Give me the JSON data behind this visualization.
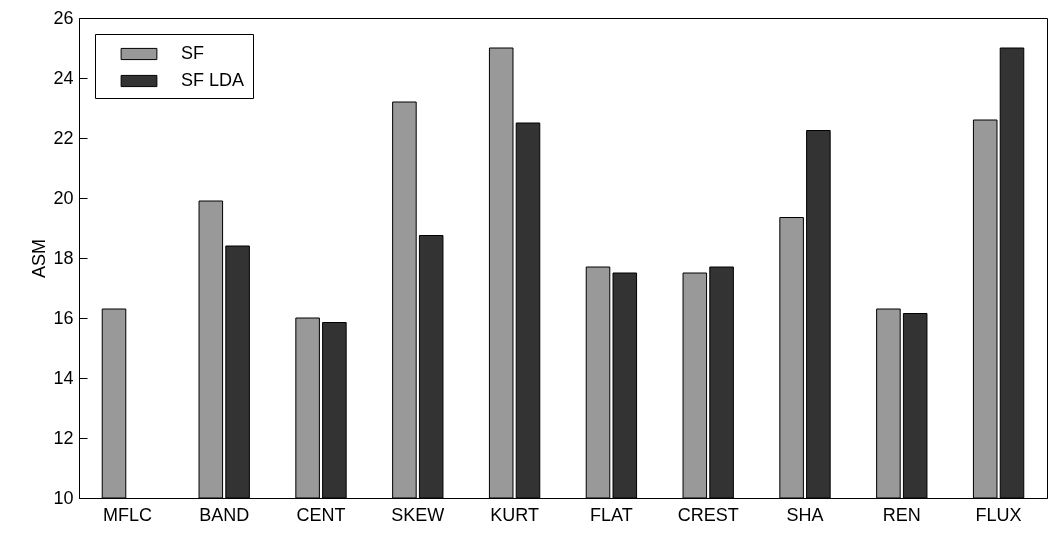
{
  "chart_data": {
    "type": "bar",
    "ylabel": "ASM",
    "categories": [
      "MFLC",
      "BAND",
      "CENT",
      "SKEW",
      "KURT",
      "FLAT",
      "CREST",
      "SHA",
      "REN",
      "FLUX"
    ],
    "series": [
      {
        "name": "SF",
        "color": "#999999",
        "values": [
          16.3,
          19.9,
          16.0,
          23.2,
          25.0,
          17.7,
          17.5,
          19.35,
          16.3,
          22.6
        ]
      },
      {
        "name": "SF LDA",
        "color": "#333333",
        "values": [
          null,
          18.4,
          15.85,
          18.75,
          22.5,
          17.5,
          17.7,
          22.25,
          16.15,
          25.0
        ]
      }
    ],
    "ylim": [
      10,
      26
    ],
    "yticks": [
      10,
      12,
      14,
      16,
      18,
      20,
      22,
      24,
      26
    ],
    "grid": false,
    "legend": "top left"
  }
}
